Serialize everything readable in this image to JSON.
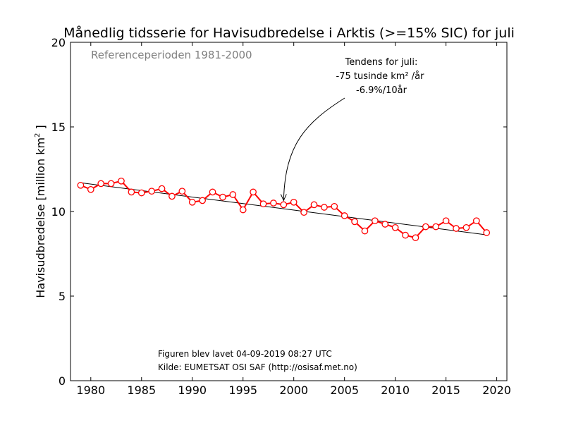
{
  "chart_data": {
    "type": "line",
    "title": "Månedlig tidsserie for Havisudbredelse i Arktis (>=15% SIC) for juli",
    "ylabel": "Havisudbredelse [million km",
    "ylabel_sup": "2",
    "ylabel_close": " ]",
    "xlabel": "",
    "xlim": [
      1978,
      2021
    ],
    "ylim": [
      0,
      20
    ],
    "x_ticks": [
      1980,
      1985,
      1990,
      1995,
      2000,
      2005,
      2010,
      2015,
      2020
    ],
    "y_ticks": [
      0,
      5,
      10,
      15,
      20
    ],
    "grid": false,
    "reference_note": "Referenceperioden 1981-2000",
    "series": [
      {
        "color": "#ff0000",
        "x": [
          1979,
          1980,
          1981,
          1982,
          1983,
          1984,
          1985,
          1986,
          1987,
          1988,
          1989,
          1990,
          1991,
          1992,
          1993,
          1994,
          1995,
          1996,
          1997,
          1998,
          1999,
          2000,
          2001,
          2002,
          2003,
          2004,
          2005,
          2006,
          2007,
          2008,
          2009,
          2010,
          2011,
          2012,
          2013,
          2014,
          2015,
          2016,
          2017,
          2018,
          2019
        ],
        "values": [
          11.55,
          11.3,
          11.65,
          11.65,
          11.8,
          11.15,
          11.1,
          11.2,
          11.35,
          10.9,
          11.2,
          10.55,
          10.65,
          11.15,
          10.85,
          11.0,
          10.1,
          11.15,
          10.45,
          10.5,
          10.4,
          10.55,
          9.95,
          10.4,
          10.25,
          10.3,
          9.75,
          9.4,
          8.85,
          9.45,
          9.25,
          9.05,
          8.6,
          8.45,
          9.1,
          9.1,
          9.45,
          9.0,
          9.05,
          9.45,
          8.75
        ]
      }
    ],
    "trend": {
      "color": "#000000",
      "x": [
        1979,
        2019
      ],
      "values": [
        11.7,
        8.62
      ]
    },
    "annotation": {
      "lines": [
        "Tendens for juli:",
        "-75 tusinde km² /år",
        "-6.9%/10år"
      ],
      "arrow_target": {
        "x": 1999,
        "y": 10.4
      }
    },
    "footer": [
      "Figuren blev lavet 04-09-2019 08:27 UTC",
      "Kilde: EUMETSAT OSI SAF (http://osisaf.met.no)"
    ]
  }
}
